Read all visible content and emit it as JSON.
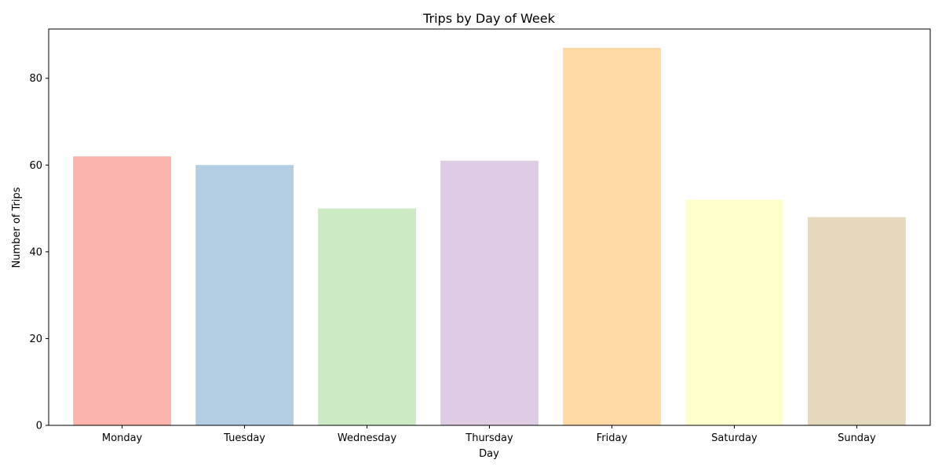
{
  "chart_data": {
    "type": "bar",
    "title": "Trips by Day of Week",
    "xlabel": "Day",
    "ylabel": "Number of Trips",
    "categories": [
      "Monday",
      "Tuesday",
      "Wednesday",
      "Thursday",
      "Friday",
      "Saturday",
      "Sunday"
    ],
    "values": [
      62,
      60,
      50,
      61,
      87,
      52,
      48
    ],
    "colors": [
      "#fbb4ae",
      "#b3cde3",
      "#ccebc5",
      "#decbe4",
      "#fed9a6",
      "#ffffcc",
      "#e5d8bd"
    ],
    "ylim": [
      0,
      91.35
    ],
    "yticks": [
      0,
      20,
      40,
      60,
      80
    ],
    "grid": false,
    "legend": "none"
  }
}
